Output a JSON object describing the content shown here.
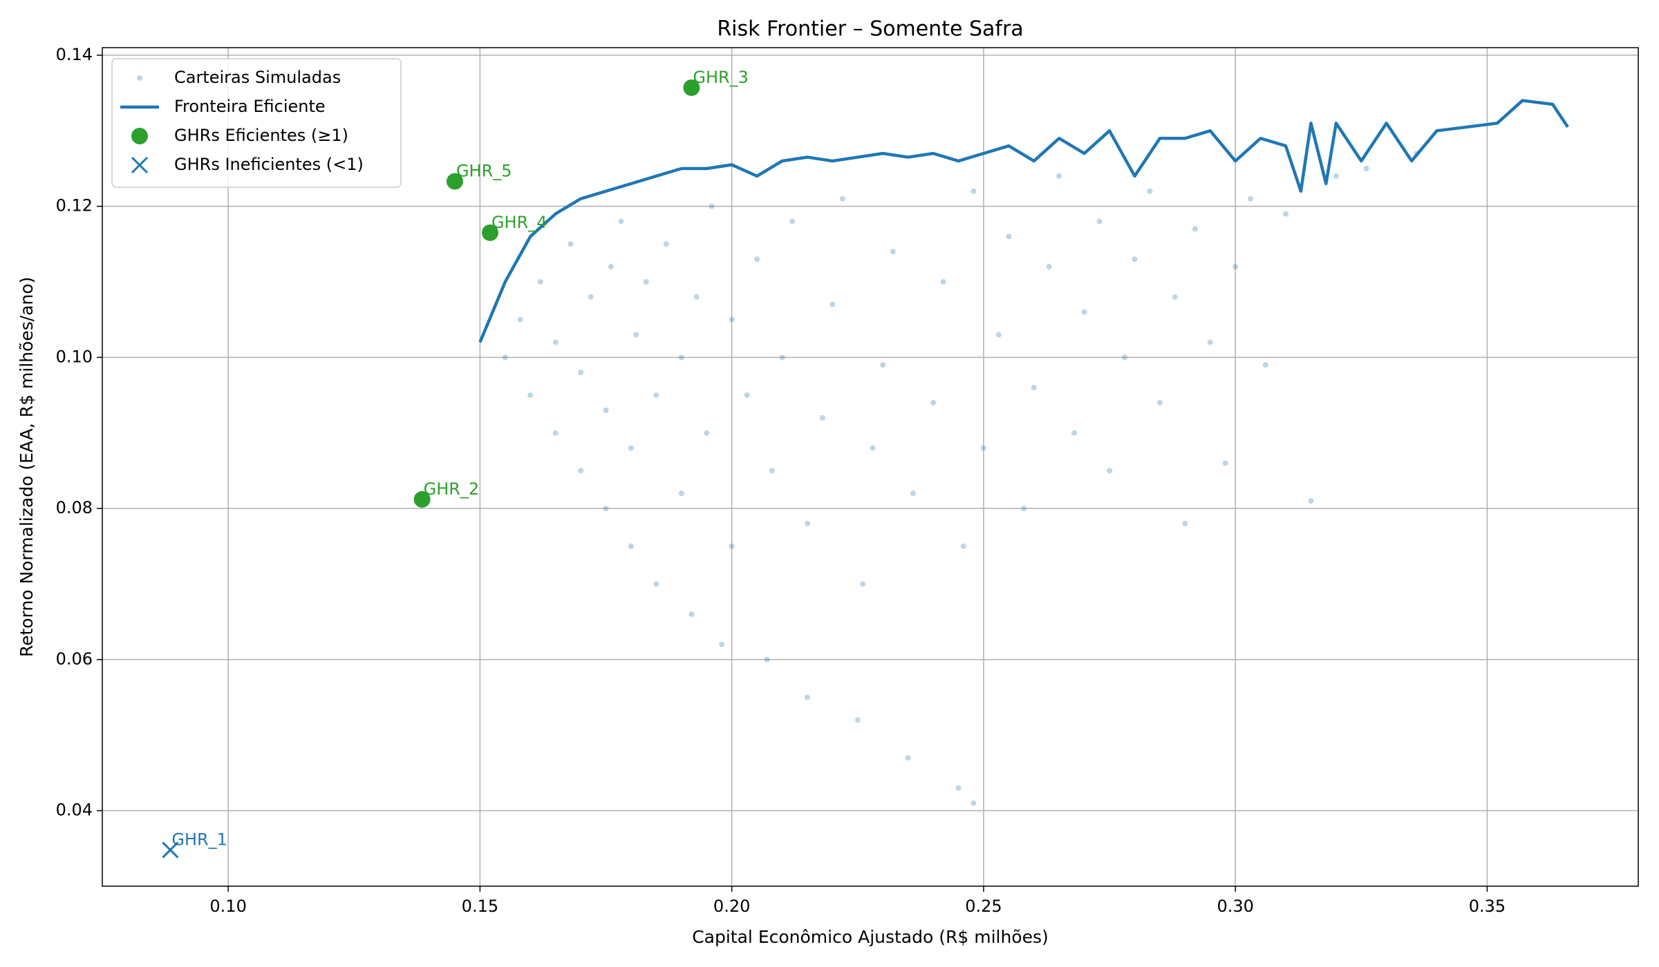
{
  "chart_data": {
    "type": "scatter",
    "title": "Risk Frontier – Somente Safra",
    "xlabel": "Capital Econômico Ajustado (R$ milhões)",
    "ylabel": "Retorno Normalizado (EAA, R$ milhões/ano)",
    "xlim": [
      0.075,
      0.38
    ],
    "ylim": [
      0.03,
      0.141
    ],
    "xticks": [
      {
        "value": 0.1,
        "label": "0.10"
      },
      {
        "value": 0.15,
        "label": "0.15"
      },
      {
        "value": 0.2,
        "label": "0.20"
      },
      {
        "value": 0.25,
        "label": "0.25"
      },
      {
        "value": 0.3,
        "label": "0.30"
      },
      {
        "value": 0.35,
        "label": "0.35"
      }
    ],
    "yticks": [
      {
        "value": 0.04,
        "label": "0.04"
      },
      {
        "value": 0.06,
        "label": "0.06"
      },
      {
        "value": 0.08,
        "label": "0.08"
      },
      {
        "value": 0.1,
        "label": "0.10"
      },
      {
        "value": 0.12,
        "label": "0.12"
      },
      {
        "value": 0.14,
        "label": "0.14"
      }
    ],
    "grid": true,
    "legend": "upper left",
    "series": [
      {
        "name": "Carteiras Simuladas",
        "marker": "dot",
        "color": "#1f77b4",
        "x": [
          0.155,
          0.158,
          0.16,
          0.162,
          0.165,
          0.165,
          0.168,
          0.17,
          0.17,
          0.172,
          0.175,
          0.175,
          0.176,
          0.178,
          0.18,
          0.18,
          0.181,
          0.183,
          0.185,
          0.185,
          0.187,
          0.19,
          0.19,
          0.192,
          0.193,
          0.195,
          0.196,
          0.198,
          0.2,
          0.2,
          0.203,
          0.205,
          0.207,
          0.208,
          0.21,
          0.212,
          0.215,
          0.215,
          0.218,
          0.22,
          0.222,
          0.225,
          0.226,
          0.228,
          0.23,
          0.232,
          0.235,
          0.236,
          0.24,
          0.242,
          0.245,
          0.246,
          0.248,
          0.25,
          0.253,
          0.255,
          0.258,
          0.26,
          0.263,
          0.265,
          0.268,
          0.27,
          0.273,
          0.275,
          0.278,
          0.28,
          0.283,
          0.285,
          0.288,
          0.29,
          0.292,
          0.295,
          0.298,
          0.3,
          0.303,
          0.306,
          0.31,
          0.315,
          0.32,
          0.326,
          0.336,
          0.248
        ],
        "values": [
          0.1,
          0.105,
          0.095,
          0.11,
          0.09,
          0.102,
          0.115,
          0.085,
          0.098,
          0.108,
          0.08,
          0.093,
          0.112,
          0.118,
          0.075,
          0.088,
          0.103,
          0.11,
          0.07,
          0.095,
          0.115,
          0.082,
          0.1,
          0.066,
          0.108,
          0.09,
          0.12,
          0.062,
          0.075,
          0.105,
          0.095,
          0.113,
          0.06,
          0.085,
          0.1,
          0.118,
          0.055,
          0.078,
          0.092,
          0.107,
          0.121,
          0.052,
          0.07,
          0.088,
          0.099,
          0.114,
          0.047,
          0.082,
          0.094,
          0.11,
          0.043,
          0.075,
          0.122,
          0.088,
          0.103,
          0.116,
          0.08,
          0.096,
          0.112,
          0.124,
          0.09,
          0.106,
          0.118,
          0.085,
          0.1,
          0.113,
          0.122,
          0.094,
          0.108,
          0.078,
          0.117,
          0.102,
          0.086,
          0.112,
          0.121,
          0.099,
          0.119,
          0.081,
          0.124,
          0.125,
          0.127,
          0.041
        ]
      },
      {
        "name": "Fronteira Eficiente",
        "marker": "line",
        "color": "#1f77b4",
        "x": [
          0.15,
          0.155,
          0.16,
          0.165,
          0.17,
          0.175,
          0.18,
          0.185,
          0.19,
          0.195,
          0.2,
          0.205,
          0.21,
          0.215,
          0.22,
          0.225,
          0.23,
          0.235,
          0.24,
          0.245,
          0.25,
          0.255,
          0.26,
          0.265,
          0.27,
          0.275,
          0.28,
          0.285,
          0.29,
          0.295,
          0.3,
          0.305,
          0.31,
          0.313,
          0.315,
          0.318,
          0.32,
          0.325,
          0.33,
          0.335,
          0.34,
          0.352,
          0.357,
          0.363,
          0.366
        ],
        "values": [
          0.102,
          0.11,
          0.116,
          0.119,
          0.121,
          0.122,
          0.123,
          0.124,
          0.125,
          0.125,
          0.1255,
          0.124,
          0.126,
          0.1265,
          0.126,
          0.1265,
          0.127,
          0.1265,
          0.127,
          0.126,
          0.127,
          0.128,
          0.126,
          0.129,
          0.127,
          0.13,
          0.124,
          0.129,
          0.129,
          0.13,
          0.126,
          0.129,
          0.128,
          0.122,
          0.131,
          0.123,
          0.131,
          0.126,
          0.131,
          0.126,
          0.13,
          0.131,
          0.134,
          0.1335,
          0.1305
        ]
      },
      {
        "name": "GHRs Eficientes (≥1)",
        "marker": "circle",
        "color": "#2ca02c",
        "x": [
          0.1385,
          0.192,
          0.152,
          0.145
        ],
        "values": [
          0.0812,
          0.1357,
          0.1165,
          0.1233
        ],
        "labels": [
          "GHR_2",
          "GHR_3",
          "GHR_4",
          "GHR_5"
        ]
      },
      {
        "name": "GHRs Ineficientes (<1)",
        "marker": "x",
        "color": "#1f77b4",
        "x": [
          0.0885
        ],
        "values": [
          0.0348
        ],
        "labels": [
          "GHR_1"
        ]
      }
    ]
  }
}
